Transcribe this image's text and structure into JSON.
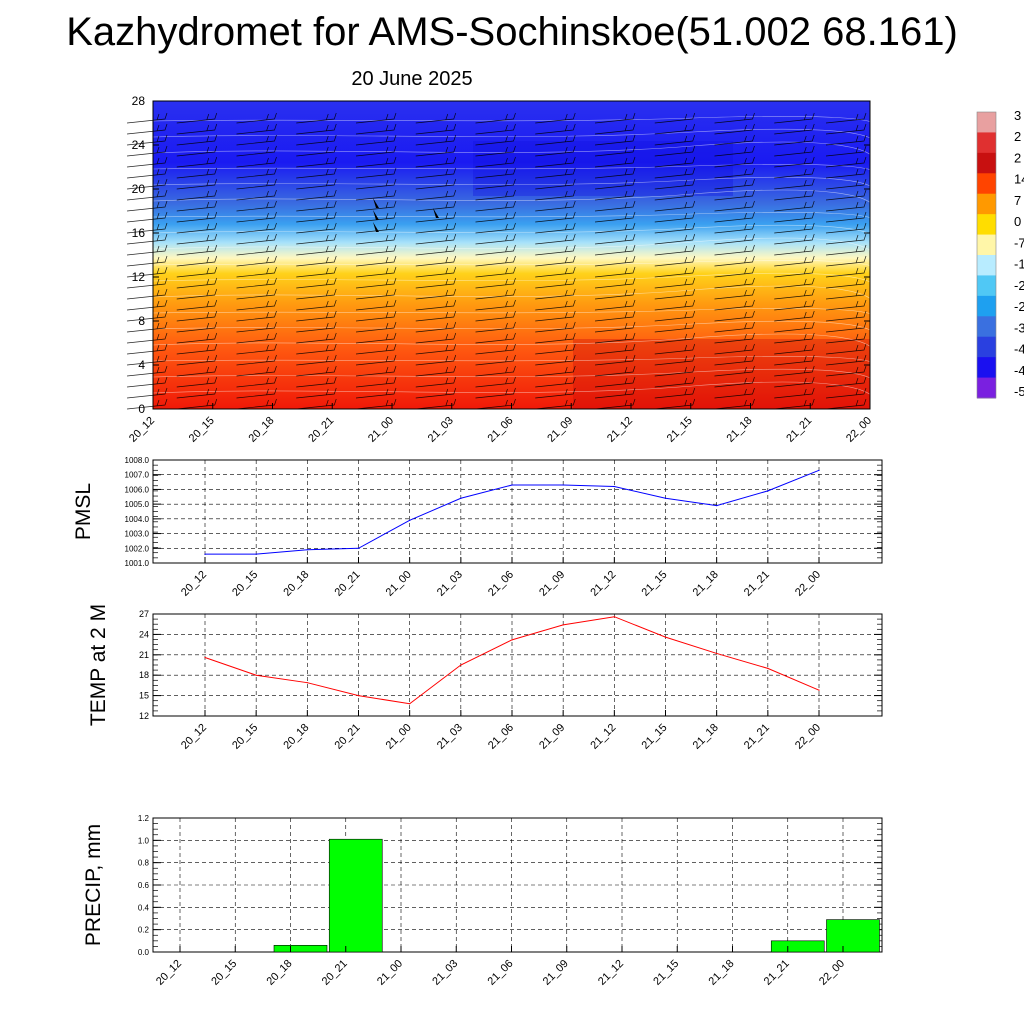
{
  "title": "Kazhydromet for AMS-Sochinskoe(51.002 68.161)",
  "subtitle": "20 June 2025",
  "time_labels": [
    "20_12",
    "20_15",
    "20_18",
    "20_21",
    "21_00",
    "21_03",
    "21_06",
    "21_09",
    "21_12",
    "21_15",
    "21_18",
    "21_21",
    "22_00"
  ],
  "colors": {
    "pmsl_line": "#0000ff",
    "temp_line": "#ff0000",
    "precip_bar": "#00ff00",
    "grid": "#000000"
  },
  "chart_data": [
    {
      "type": "heatmap",
      "ylim": [
        0,
        28
      ],
      "yticks": [
        "0",
        "4",
        "8",
        "12",
        "16",
        "20",
        "24",
        "28"
      ],
      "colorbar_labels": [
        "3",
        "2",
        "2",
        "14",
        "7",
        "0",
        "-7",
        "-1",
        "-2",
        "-2",
        "-3",
        "-4",
        "-4",
        "-5"
      ],
      "colormap": [
        "#e8a0a0",
        "#e03030",
        "#c81010",
        "#ff4400",
        "#ff9900",
        "#ffdd00",
        "#fff6a8",
        "#b8ecff",
        "#50c8f5",
        "#1ea0f0",
        "#3a70e0",
        "#2a40e0",
        "#1a10f0",
        "#7a20e0"
      ]
    },
    {
      "type": "line",
      "ylabel": "PMSL",
      "ylim": [
        1001.0,
        1008.0
      ],
      "yticks": [
        "1001.0",
        "1002.0",
        "1003.0",
        "1004.0",
        "1005.0",
        "1006.0",
        "1007.0",
        "1008.0"
      ],
      "values": [
        1001.6,
        1001.6,
        1001.9,
        1002.0,
        1003.9,
        1005.4,
        1006.3,
        1006.3,
        1006.2,
        1005.4,
        1004.9,
        1005.9,
        1007.3
      ]
    },
    {
      "type": "line",
      "ylabel": "TEMP at 2 M",
      "ylim": [
        12,
        27
      ],
      "yticks": [
        "12",
        "15",
        "18",
        "21",
        "24",
        "27"
      ],
      "values": [
        20.6,
        18.0,
        16.9,
        15.0,
        13.8,
        19.5,
        23.2,
        25.4,
        26.6,
        23.6,
        21.2,
        19.0,
        15.8
      ]
    },
    {
      "type": "bar",
      "ylabel": "PRECIP, mm",
      "ylim": [
        0.0,
        1.2
      ],
      "yticks": [
        "0.0",
        "0.2",
        "0.4",
        "0.6",
        "0.8",
        "1.0",
        "1.2"
      ],
      "values": [
        0.0,
        0.0,
        0.06,
        1.01,
        0.0,
        0.0,
        0.0,
        0.0,
        0.0,
        0.0,
        0.0,
        0.1,
        0.29
      ]
    }
  ]
}
